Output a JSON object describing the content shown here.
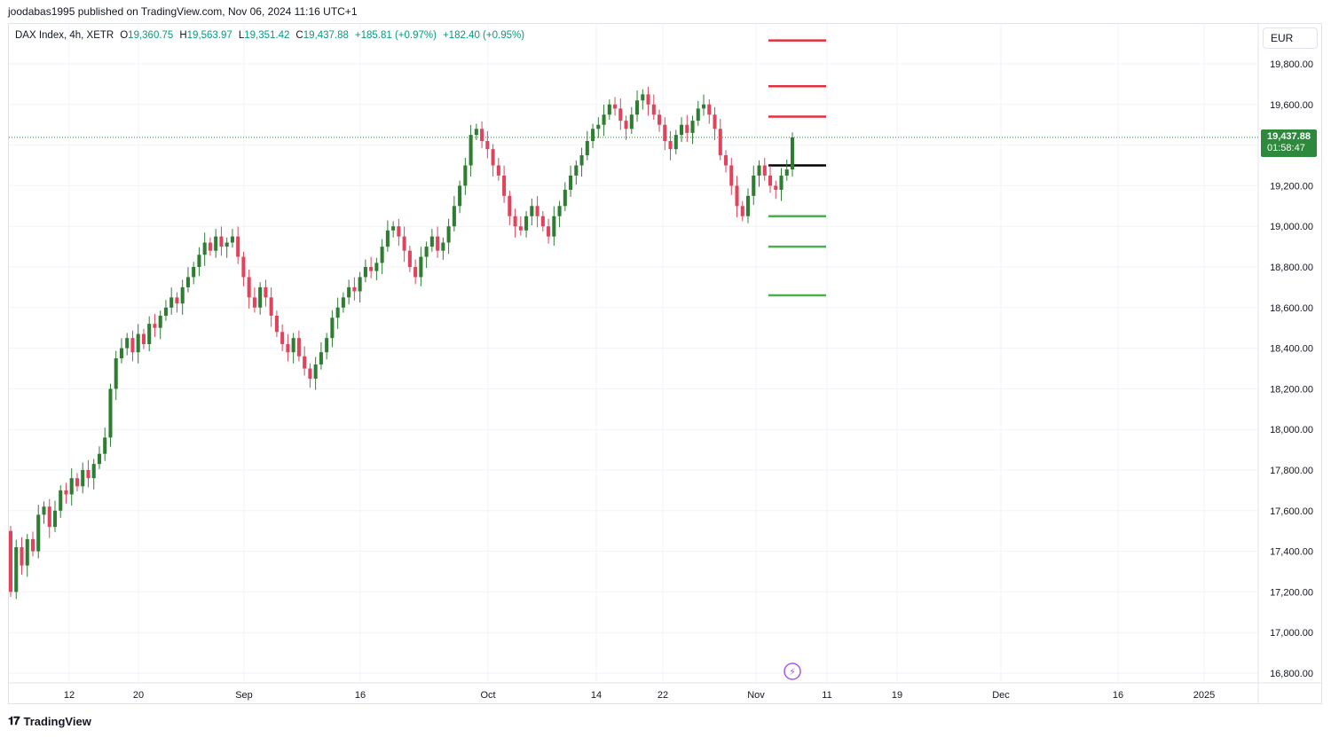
{
  "header": {
    "publisher_line": "joodabas1995 published on TradingView.com, Nov 06, 2024 11:16 UTC+1"
  },
  "legend": {
    "symbol": "DAX Index, 4h, XETR",
    "open_label": "O",
    "open": "19,360.75",
    "high_label": "H",
    "high": "19,563.97",
    "low_label": "L",
    "low": "19,351.42",
    "close_label": "C",
    "close": "19,437.88",
    "change": "+185.81 (+0.97%)",
    "change2": "+182.40 (+0.95%)"
  },
  "currency": "EUR",
  "last_price": {
    "price": "19,437.88",
    "countdown": "01:58:47"
  },
  "footer": {
    "brand": "TradingView"
  },
  "colors": {
    "up": "#2e7d32",
    "down": "#e0445c",
    "resistance": "#e0303f",
    "support": "#4caf50",
    "pivot": "#000000",
    "price_line": "#2d8a3c"
  },
  "chart_data": {
    "type": "candlestick",
    "title": "DAX Index, 4h, XETR",
    "y_axis_ticks": [
      "16,800.00",
      "17,000.00",
      "17,200.00",
      "17,400.00",
      "17,600.00",
      "17,800.00",
      "18,000.00",
      "18,200.00",
      "18,400.00",
      "18,600.00",
      "18,800.00",
      "19,000.00",
      "19,200.00",
      "19,400.00",
      "19,600.00",
      "19,800.00"
    ],
    "y_tick_values": [
      16800,
      17000,
      17200,
      17400,
      17600,
      17800,
      18000,
      18200,
      18400,
      18600,
      18800,
      19000,
      19200,
      19400,
      19600,
      19800
    ],
    "ylim": [
      16800,
      19800
    ],
    "x_axis_ticks": [
      "12",
      "20",
      "Sep",
      "16",
      "Oct",
      "14",
      "22",
      "Nov",
      "11",
      "19",
      "Dec",
      "16",
      "2025"
    ],
    "grid": true,
    "current_price": 19437.88,
    "horizontal_levels": [
      {
        "kind": "resistance",
        "value": 19915
      },
      {
        "kind": "resistance",
        "value": 19690
      },
      {
        "kind": "resistance",
        "value": 19540
      },
      {
        "kind": "pivot",
        "value": 19300
      },
      {
        "kind": "support",
        "value": 19050
      },
      {
        "kind": "support",
        "value": 18900
      },
      {
        "kind": "support",
        "value": 18660
      }
    ],
    "closes": [
      17200,
      17420,
      17330,
      17460,
      17400,
      17580,
      17620,
      17520,
      17600,
      17700,
      17680,
      17760,
      17720,
      17800,
      17760,
      17830,
      17880,
      17960,
      18200,
      18350,
      18400,
      18450,
      18380,
      18470,
      18420,
      18520,
      18500,
      18560,
      18600,
      18650,
      18620,
      18700,
      18750,
      18800,
      18860,
      18920,
      18880,
      18950,
      18900,
      18920,
      18950,
      18850,
      18750,
      18650,
      18600,
      18700,
      18650,
      18560,
      18480,
      18420,
      18380,
      18450,
      18360,
      18300,
      18250,
      18320,
      18380,
      18450,
      18550,
      18600,
      18650,
      18700,
      18680,
      18750,
      18800,
      18780,
      18820,
      18900,
      18980,
      19000,
      18950,
      18880,
      18800,
      18750,
      18850,
      18900,
      18950,
      18880,
      18920,
      19000,
      19100,
      19200,
      19300,
      19450,
      19480,
      19420,
      19380,
      19300,
      19250,
      19150,
      19050,
      19000,
      18980,
      19050,
      19100,
      19050,
      19000,
      18950,
      19050,
      19100,
      19180,
      19250,
      19300,
      19350,
      19420,
      19480,
      19500,
      19550,
      19600,
      19580,
      19520,
      19480,
      19550,
      19620,
      19650,
      19600,
      19550,
      19500,
      19420,
      19380,
      19450,
      19500,
      19460,
      19520,
      19580,
      19600,
      19550,
      19480,
      19350,
      19300,
      19200,
      19100,
      19050,
      19150,
      19250,
      19300,
      19250,
      19200,
      19180,
      19250,
      19280,
      19437.88
    ]
  }
}
